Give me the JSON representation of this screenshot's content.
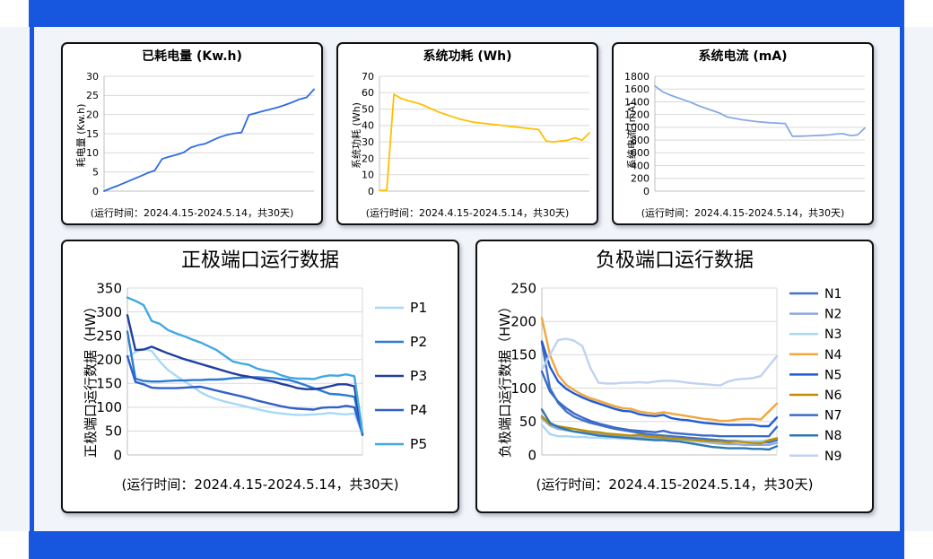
{
  "app": {
    "frame_color": "#1757E0",
    "canvas_color": "#F1F4F9",
    "card_border_color": "#101010",
    "grid_color": "#D9D9D9",
    "axis_color": "#BFBFBF"
  },
  "chart_data": [
    {
      "type": "line",
      "title": "已耗电量 (Kw.h)",
      "ylabel": "耗电量 (Kw.h)",
      "caption": "(运行时间：2024.4.15-2024.5.14，共30天)",
      "ylim": [
        0,
        30
      ],
      "ystep": 5,
      "grid": true,
      "legend": false,
      "x_range_days": 30,
      "series": [
        {
          "name": "已耗电量",
          "color": "#2E6BE4",
          "values": [
            0,
            0.8,
            1.5,
            2.3,
            3.1,
            3.9,
            4.7,
            5.4,
            8.4,
            9,
            9.5,
            10.1,
            11.4,
            12,
            12.4,
            13.3,
            14.1,
            14.7,
            15.1,
            15.3,
            19.9,
            20.4,
            20.9,
            21.4,
            21.9,
            22.5,
            23.2,
            24,
            24.5,
            26.6
          ]
        }
      ]
    },
    {
      "type": "line",
      "title": "系统功耗 (Wh)",
      "ylabel": "系统功耗 (Wh)",
      "caption": "(运行时间：2024.4.15-2024.5.14，共30天)",
      "ylim": [
        0,
        70
      ],
      "ystep": 10,
      "grid": true,
      "legend": false,
      "x_range_days": 30,
      "series": [
        {
          "name": "系统功耗",
          "color": "#FFC000",
          "values": [
            0.5,
            0.5,
            59,
            56.5,
            55,
            54,
            52.5,
            50.5,
            48.5,
            47,
            45.5,
            44,
            43,
            42,
            41.5,
            41,
            40.5,
            40,
            39.5,
            39,
            38.5,
            38,
            37.5,
            30.5,
            30,
            30.5,
            31,
            32.5,
            31,
            35.5
          ]
        }
      ]
    },
    {
      "type": "line",
      "title": "系统电流 (mA)",
      "ylabel": "系统电流 (mA)",
      "caption": "(运行时间：2024.4.15-2024.5.14，共30天)",
      "ylim": [
        0,
        1800
      ],
      "ystep": 200,
      "grid": true,
      "legend": false,
      "x_range_days": 30,
      "series": [
        {
          "name": "系统电流",
          "color": "#88A9E2",
          "values": [
            1650,
            1560,
            1510,
            1470,
            1430,
            1390,
            1340,
            1300,
            1260,
            1220,
            1160,
            1140,
            1120,
            1105,
            1090,
            1080,
            1070,
            1065,
            1060,
            860,
            860,
            865,
            870,
            875,
            880,
            895,
            900,
            870,
            880,
            990
          ]
        }
      ]
    },
    {
      "type": "line",
      "title": "正极端口运行数据",
      "ylabel": "正极端口运行数据（HW）",
      "caption": "(运行时间：2024.4.15-2024.5.14，共30天)",
      "ylim": [
        0,
        350
      ],
      "ystep": 50,
      "grid": true,
      "legend": true,
      "legend_position": "right",
      "x_range_days": 30,
      "series": [
        {
          "name": "P1",
          "color": "#A6D9F7",
          "values": [
            205,
            216,
            222,
            218,
            196,
            178,
            166,
            155,
            144,
            132,
            123,
            117,
            112,
            108,
            104,
            100,
            96,
            92,
            89,
            87,
            85,
            84,
            84,
            85,
            86,
            88,
            86,
            85,
            87,
            44
          ]
        },
        {
          "name": "P2",
          "color": "#2B7BD4",
          "values": [
            259,
            160,
            155,
            154,
            154,
            155,
            156,
            156,
            157,
            157,
            158,
            158,
            159,
            161,
            162,
            163,
            163,
            162,
            161,
            159,
            157,
            152,
            146,
            140,
            134,
            128,
            127,
            125,
            122,
            45
          ]
        },
        {
          "name": "P3",
          "color": "#203F9E",
          "values": [
            293,
            220,
            221,
            227,
            220,
            213,
            207,
            201,
            196,
            191,
            186,
            181,
            176,
            171,
            167,
            164,
            160,
            157,
            154,
            149,
            145,
            140,
            138,
            138,
            140,
            144,
            148,
            148,
            144,
            42
          ]
        },
        {
          "name": "P4",
          "color": "#3060C8",
          "values": [
            207,
            153,
            148,
            141,
            140,
            140,
            140,
            141,
            142,
            143,
            139,
            135,
            131,
            127,
            123,
            119,
            114,
            110,
            106,
            102,
            99,
            97,
            96,
            95,
            99,
            100,
            100,
            103,
            100,
            44
          ]
        },
        {
          "name": "P5",
          "color": "#41A8E4",
          "values": [
            330,
            323,
            314,
            281,
            275,
            262,
            255,
            249,
            242,
            236,
            228,
            220,
            208,
            196,
            192,
            189,
            181,
            177,
            174,
            167,
            162,
            160,
            160,
            159,
            164,
            167,
            166,
            169,
            165,
            48
          ]
        }
      ]
    },
    {
      "type": "line",
      "title": "负极端口运行数据",
      "ylabel": "负极端口运行数据（HW）",
      "caption": "(运行时间：2024.4.15-2024.5.14，共30天)",
      "ylim": [
        0,
        250
      ],
      "ystep": 50,
      "grid": true,
      "legend": true,
      "legend_position": "right",
      "x_range_days": 30,
      "series": [
        {
          "name": "N1",
          "color": "#4472C4",
          "values": [
            168,
            100,
            78,
            65,
            57,
            52,
            48,
            45,
            42,
            39,
            37,
            35,
            33,
            31,
            30,
            29,
            28,
            27,
            26,
            25,
            24,
            23,
            22,
            21,
            21,
            20,
            20,
            19,
            19,
            22
          ]
        },
        {
          "name": "N2",
          "color": "#8FAADC",
          "values": [
            55,
            44,
            39,
            37,
            35,
            34,
            33,
            32,
            31,
            30,
            29,
            28,
            27,
            26,
            25,
            24,
            23,
            22,
            21,
            20,
            19,
            18,
            17,
            16,
            16,
            15,
            15,
            15,
            15,
            18
          ]
        },
        {
          "name": "N3",
          "color": "#A9D8F5",
          "values": [
            45,
            31,
            28,
            28,
            27,
            27,
            26,
            26,
            25,
            25,
            24,
            24,
            23,
            23,
            22,
            22,
            21,
            21,
            20,
            20,
            19,
            19,
            19,
            19,
            20,
            20,
            21,
            21,
            22,
            25
          ]
        },
        {
          "name": "N4",
          "color": "#F4A53C",
          "values": [
            205,
            150,
            120,
            105,
            97,
            90,
            85,
            81,
            77,
            73,
            70,
            69,
            65,
            63,
            62,
            64,
            62,
            60,
            58,
            56,
            54,
            53,
            51,
            51,
            53,
            54,
            54,
            53,
            65,
            77
          ]
        },
        {
          "name": "N5",
          "color": "#1F5CD6",
          "values": [
            170,
            132,
            110,
            99,
            92,
            86,
            81,
            77,
            73,
            69,
            66,
            65,
            61,
            59,
            58,
            60,
            55,
            53,
            52,
            50,
            48,
            47,
            46,
            45,
            45,
            45,
            45,
            43,
            43,
            56
          ]
        },
        {
          "name": "N6",
          "color": "#BF8F00",
          "values": [
            58,
            46,
            43,
            41,
            39,
            37,
            35,
            34,
            32,
            31,
            30,
            29,
            30,
            28,
            27,
            26,
            25,
            24,
            23,
            22,
            21,
            20,
            20,
            19,
            20,
            19,
            18,
            17,
            22,
            25
          ]
        },
        {
          "name": "N7",
          "color": "#3A6BC9",
          "values": [
            125,
            95,
            80,
            70,
            62,
            56,
            51,
            47,
            44,
            41,
            39,
            37,
            36,
            35,
            34,
            36,
            33,
            32,
            31,
            30,
            29,
            29,
            28,
            28,
            28,
            28,
            28,
            28,
            28,
            42
          ]
        },
        {
          "name": "N8",
          "color": "#2E77B0",
          "values": [
            68,
            48,
            42,
            38,
            35,
            33,
            31,
            29,
            28,
            27,
            26,
            25,
            24,
            23,
            22,
            22,
            21,
            20,
            18,
            16,
            14,
            12,
            11,
            10,
            10,
            10,
            9,
            9,
            8,
            13
          ]
        },
        {
          "name": "N9",
          "color": "#BFD2F0",
          "values": [
            128,
            150,
            172,
            174,
            171,
            163,
            130,
            108,
            107,
            107,
            108,
            108,
            109,
            108,
            110,
            111,
            111,
            110,
            108,
            107,
            106,
            105,
            104,
            110,
            113,
            114,
            115,
            118,
            133,
            148
          ]
        }
      ]
    }
  ]
}
